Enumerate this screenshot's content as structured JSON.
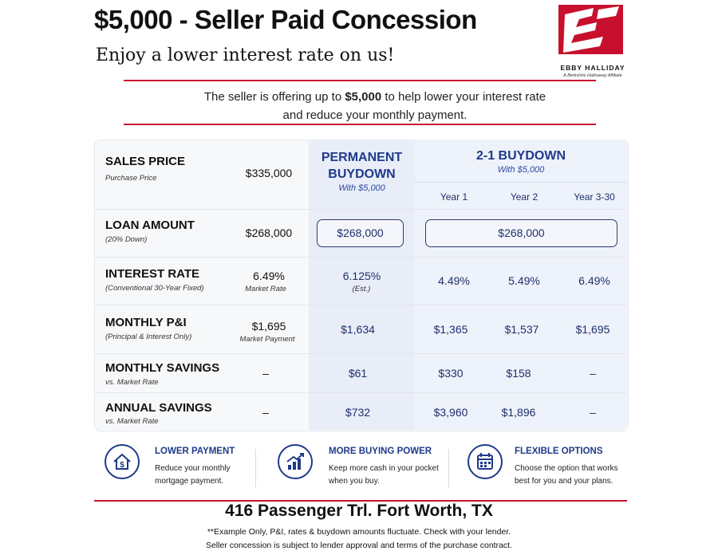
{
  "header": {
    "title": "$5,000 - Seller Paid Concession",
    "subtitle": "Enjoy a lower interest rate on us!"
  },
  "logo": {
    "name": "EBBY HALLIDAY",
    "tagline": "A Berkshire Hathaway Affiliate"
  },
  "intro": {
    "part1": "The seller is offering up to ",
    "amount": "$5,000",
    "part2": " to help lower your interest rate",
    "line2": "and reduce your monthly payment."
  },
  "columns": {
    "permanent_title_1": "PERMANENT",
    "permanent_title_2": "BUYDOWN",
    "permanent_sub": "With $5,000",
    "buydown_title": "2-1 BUYDOWN",
    "buydown_sub": "With $5,000",
    "years": [
      "Year 1",
      "Year 2",
      "Year 3-30"
    ]
  },
  "rows": {
    "sales": {
      "label": "SALES PRICE",
      "sub": "Purchase Price",
      "market": "$335,000"
    },
    "loan": {
      "label": "LOAN AMOUNT",
      "sub": "(20% Down)",
      "market": "$268,000",
      "perm": "$268,000",
      "buydown": "$268,000"
    },
    "rate": {
      "label": "INTEREST RATE",
      "sub": "(Conventional 30-Year Fixed)",
      "market": "6.49%",
      "market_sub": "Market Rate",
      "perm": "6.125%",
      "perm_sub": "(Est.)",
      "y1": "4.49%",
      "y2": "5.49%",
      "y3": "6.49%"
    },
    "pi": {
      "label": "MONTHLY P&I",
      "sub": "(Principal & Interest Only)",
      "market": "$1,695",
      "market_sub": "Market Payment",
      "perm": "$1,634",
      "y1": "$1,365",
      "y2": "$1,537",
      "y3": "$1,695"
    },
    "monthly_savings": {
      "label": "MONTHLY SAVINGS",
      "sub": "vs. Market Rate",
      "market": "–",
      "perm": "$61",
      "y1": "$330",
      "y2": "$158",
      "y3": "–"
    },
    "annual_savings": {
      "label": "ANNUAL SAVINGS",
      "sub": "vs. Market Rate",
      "market": "–",
      "perm": "$732",
      "y1": "$3,960",
      "y2": "$1,896",
      "y3": "–"
    }
  },
  "features": [
    {
      "icon": "house-dollar-icon",
      "title": "LOWER PAYMENT",
      "line1": "Reduce your monthly",
      "line2": "mortgage payment."
    },
    {
      "icon": "chart-growth-icon",
      "title": "MORE BUYING POWER",
      "line1": "Keep more cash in your pocket",
      "line2": "when you buy."
    },
    {
      "icon": "calendar-icon",
      "title": "FLEXIBLE OPTIONS",
      "line1": "Choose the option that works",
      "line2": "best for you and your plans."
    }
  ],
  "footer": {
    "address": "416 Passenger Trl. Fort Worth, TX",
    "disclaimer1": "**Example Only, P&I, rates & buydown amounts fluctuate. Check with your lender.",
    "disclaimer2": "Seller concession is subject to lender approval and terms of the purchase contract."
  },
  "colors": {
    "accent_red": "#c8102e",
    "navy": "#1f3a8a",
    "panel_blue": "#e8edf8"
  }
}
